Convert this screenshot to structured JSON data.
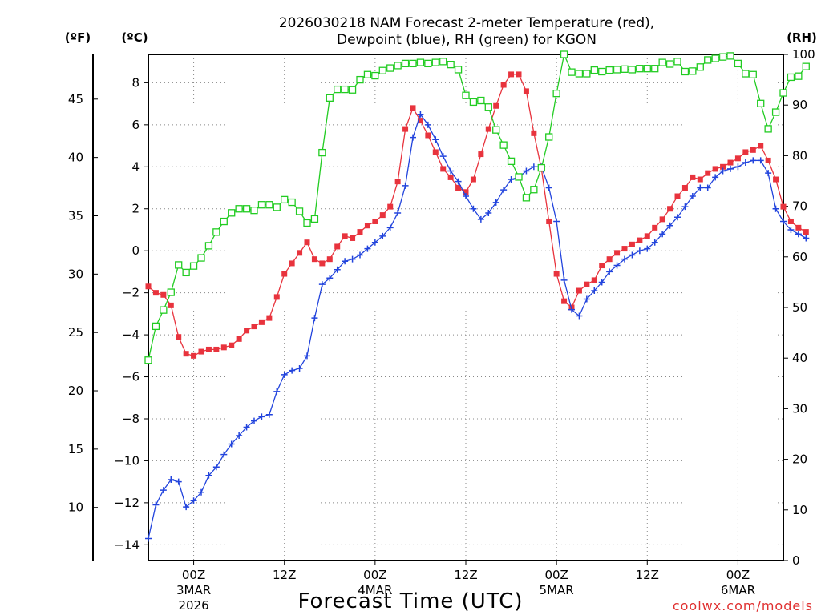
{
  "chart_data": {
    "type": "line",
    "title_line1": "2026030218 NAM Forecast 2-meter Temperature (red),",
    "title_line2": "Dewpoint (blue), RH (green) for KGON",
    "xlabel": "Forecast Time (UTC)",
    "credit": "coolwx.com/models",
    "unit_f": "(ºF)",
    "unit_c": "(ºC)",
    "unit_rh": "(RH)",
    "x_unit": "hours since 2026-03-02 18Z",
    "xlim": [
      0,
      84
    ],
    "ylim_c": [
      -14.75,
      9.35
    ],
    "ylim_rh": [
      0,
      100
    ],
    "y_ticks_c": [
      "8",
      "6",
      "4",
      "2",
      "0",
      "−2",
      "−4",
      "−6",
      "−8",
      "−10",
      "−12",
      "−14"
    ],
    "y_ticks_f": [
      "45",
      "40",
      "35",
      "30",
      "25",
      "20",
      "15",
      "10"
    ],
    "y_ticks_rh": [
      "100",
      "90",
      "80",
      "70",
      "60",
      "50",
      "40",
      "30",
      "20",
      "10",
      "0"
    ],
    "x_ticks": [
      {
        "hour": 6,
        "label": "00Z",
        "day": "3MAR",
        "year": "2026"
      },
      {
        "hour": 18,
        "label": "12Z",
        "day": "",
        "year": ""
      },
      {
        "hour": 30,
        "label": "00Z",
        "day": "4MAR",
        "year": ""
      },
      {
        "hour": 42,
        "label": "12Z",
        "day": "",
        "year": ""
      },
      {
        "hour": 54,
        "label": "00Z",
        "day": "5MAR",
        "year": ""
      },
      {
        "hour": 66,
        "label": "12Z",
        "day": "",
        "year": ""
      },
      {
        "hour": 78,
        "label": "00Z",
        "day": "6MAR",
        "year": ""
      }
    ],
    "series": [
      {
        "name": "Temperature",
        "color": "#e8333d",
        "marker": "filled-square",
        "units": "C",
        "values": [
          -1.7,
          -2.0,
          -2.1,
          -2.6,
          -4.1,
          -4.9,
          -5.0,
          -4.8,
          -4.7,
          -4.7,
          -4.6,
          -4.5,
          -4.2,
          -3.8,
          -3.6,
          -3.4,
          -3.2,
          -2.2,
          -1.1,
          -0.6,
          -0.1,
          0.4,
          -0.4,
          -0.6,
          -0.4,
          0.2,
          0.7,
          0.6,
          0.9,
          1.2,
          1.4,
          1.7,
          2.1,
          3.3,
          5.8,
          6.8,
          6.2,
          5.5,
          4.7,
          3.9,
          3.5,
          3.0,
          2.8,
          3.4,
          4.6,
          5.8,
          6.9,
          7.9,
          8.4,
          8.4,
          7.6,
          5.6,
          3.9,
          1.4,
          -1.1,
          -2.4,
          -2.7,
          -1.9,
          -1.6,
          -1.4,
          -0.7,
          -0.4,
          -0.1,
          0.1,
          0.3,
          0.5,
          0.7,
          1.1,
          1.5,
          2.0,
          2.6,
          3.0,
          3.5,
          3.4,
          3.7,
          3.9,
          4.0,
          4.2,
          4.4,
          4.7,
          4.8,
          5.0,
          4.3,
          3.4,
          2.1,
          1.4,
          1.1,
          0.9
        ]
      },
      {
        "name": "Dewpoint",
        "color": "#2244dd",
        "marker": "plus",
        "units": "C",
        "values": [
          -13.7,
          -12.1,
          -11.4,
          -10.9,
          -11.0,
          -12.2,
          -11.9,
          -11.5,
          -10.7,
          -10.3,
          -9.7,
          -9.2,
          -8.8,
          -8.4,
          -8.1,
          -7.9,
          -7.8,
          -6.7,
          -5.9,
          -5.7,
          -5.6,
          -5.0,
          -3.2,
          -1.6,
          -1.3,
          -0.9,
          -0.5,
          -0.4,
          -0.2,
          0.1,
          0.4,
          0.7,
          1.1,
          1.8,
          3.1,
          5.4,
          6.5,
          6.0,
          5.3,
          4.5,
          3.8,
          3.3,
          2.6,
          2.0,
          1.5,
          1.8,
          2.3,
          2.9,
          3.4,
          3.5,
          3.8,
          4.0,
          4.0,
          3.0,
          1.4,
          -1.4,
          -2.8,
          -3.1,
          -2.3,
          -1.9,
          -1.5,
          -1.0,
          -0.7,
          -0.4,
          -0.2,
          0.0,
          0.1,
          0.4,
          0.8,
          1.2,
          1.6,
          2.1,
          2.6,
          3.0,
          3.0,
          3.5,
          3.8,
          3.9,
          4.0,
          4.2,
          4.3,
          4.3,
          3.7,
          2.0,
          1.4,
          1.0,
          0.8,
          0.6
        ]
      },
      {
        "name": "RH",
        "color": "#22cc22",
        "marker": "open-square",
        "units": "%",
        "values": [
          39.6,
          46.3,
          49.5,
          53.0,
          58.4,
          56.9,
          58.2,
          59.8,
          62.2,
          64.9,
          67.0,
          68.7,
          69.5,
          69.5,
          69.2,
          70.3,
          70.3,
          69.8,
          71.3,
          70.8,
          69.0,
          66.7,
          67.5,
          80.6,
          91.4,
          93.1,
          93.1,
          93.0,
          95.0,
          96.0,
          95.8,
          96.8,
          97.3,
          97.8,
          98.2,
          98.2,
          98.4,
          98.2,
          98.4,
          98.6,
          98.0,
          97.0,
          91.9,
          90.6,
          90.9,
          89.6,
          85.1,
          82.1,
          78.9,
          75.8,
          71.7,
          73.3,
          77.6,
          83.7,
          92.3,
          100.0,
          96.5,
          96.2,
          96.2,
          96.9,
          96.6,
          96.9,
          97.0,
          97.1,
          97.0,
          97.2,
          97.2,
          97.2,
          98.4,
          98.1,
          98.6,
          96.6,
          96.7,
          97.5,
          98.9,
          99.2,
          99.5,
          99.7,
          98.2,
          96.2,
          96.0,
          90.3,
          85.3,
          88.6,
          92.4,
          95.5,
          95.7,
          97.6
        ]
      }
    ]
  }
}
